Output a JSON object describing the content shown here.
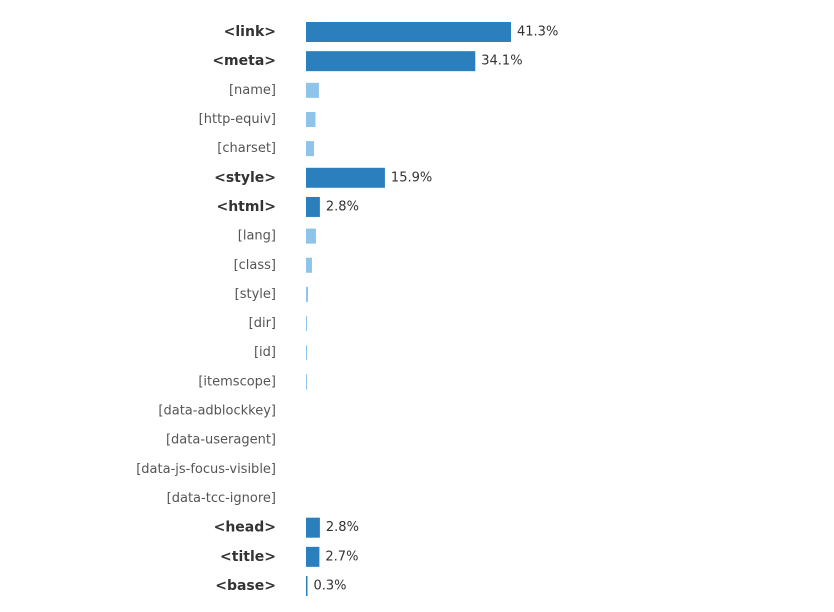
{
  "chart_data": {
    "type": "bar",
    "orientation": "horizontal",
    "colors": {
      "tag": "#2b7fbd",
      "attr": "#8ec3ea"
    },
    "xlim": [
      0,
      41.3
    ],
    "items": [
      {
        "label": "<link>",
        "kind": "tag",
        "value": 41.3,
        "value_label": "41.3%"
      },
      {
        "label": "<meta>",
        "kind": "tag",
        "value": 34.1,
        "value_label": "34.1%"
      },
      {
        "label": "[name]",
        "kind": "attr",
        "value": 2.6,
        "value_label": ""
      },
      {
        "label": "[http-equiv]",
        "kind": "attr",
        "value": 1.9,
        "value_label": ""
      },
      {
        "label": "[charset]",
        "kind": "attr",
        "value": 1.6,
        "value_label": ""
      },
      {
        "label": "<style>",
        "kind": "tag",
        "value": 15.9,
        "value_label": "15.9%"
      },
      {
        "label": "<html>",
        "kind": "tag",
        "value": 2.8,
        "value_label": "2.8%"
      },
      {
        "label": "[lang]",
        "kind": "attr",
        "value": 2.0,
        "value_label": ""
      },
      {
        "label": "[class]",
        "kind": "attr",
        "value": 1.2,
        "value_label": ""
      },
      {
        "label": "[style]",
        "kind": "attr",
        "value": 0.4,
        "value_label": ""
      },
      {
        "label": "[dir]",
        "kind": "attr",
        "value": 0.2,
        "value_label": ""
      },
      {
        "label": "[id]",
        "kind": "attr",
        "value": 0.2,
        "value_label": ""
      },
      {
        "label": "[itemscope]",
        "kind": "attr",
        "value": 0.2,
        "value_label": ""
      },
      {
        "label": "[data-adblockkey]",
        "kind": "attr",
        "value": 0,
        "value_label": ""
      },
      {
        "label": "[data-useragent]",
        "kind": "attr",
        "value": 0,
        "value_label": ""
      },
      {
        "label": "[data-js-focus-visible]",
        "kind": "attr",
        "value": 0,
        "value_label": ""
      },
      {
        "label": "[data-tcc-ignore]",
        "kind": "attr",
        "value": 0,
        "value_label": ""
      },
      {
        "label": "<head>",
        "kind": "tag",
        "value": 2.8,
        "value_label": "2.8%"
      },
      {
        "label": "<title>",
        "kind": "tag",
        "value": 2.7,
        "value_label": "2.7%"
      },
      {
        "label": "<base>",
        "kind": "tag",
        "value": 0.3,
        "value_label": "0.3%"
      }
    ]
  }
}
